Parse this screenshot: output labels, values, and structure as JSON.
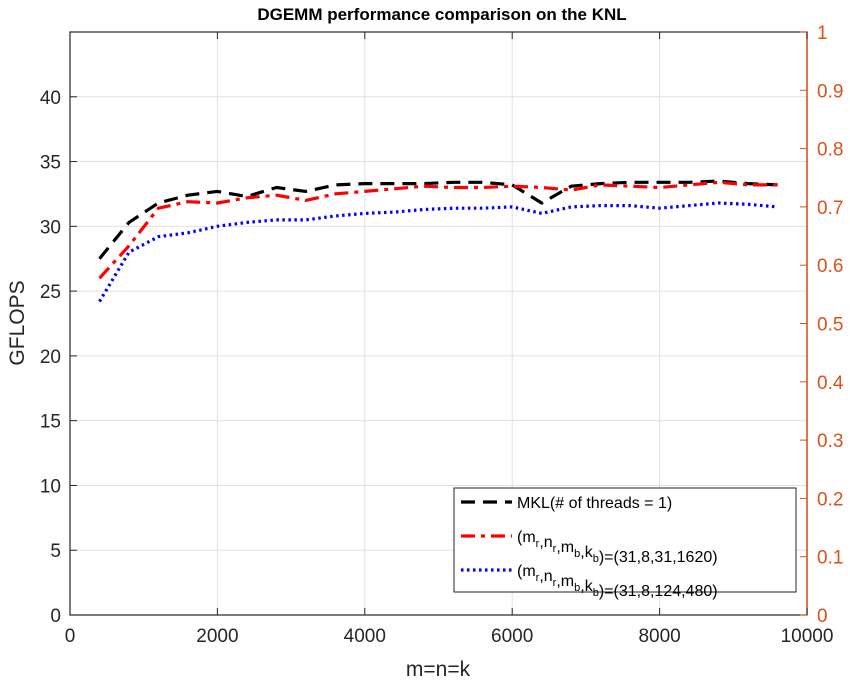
{
  "chart_data": {
    "type": "line",
    "title": "DGEMM performance comparison on the KNL",
    "xlabel": "m=n=k",
    "ylabel": "GFLOPS",
    "xlim": [
      0,
      10000
    ],
    "ylim": [
      0,
      45
    ],
    "y2lim": [
      0,
      1
    ],
    "x_ticks": [
      0,
      2000,
      4000,
      6000,
      8000,
      10000
    ],
    "y_ticks": [
      0,
      5,
      10,
      15,
      20,
      25,
      30,
      35,
      40
    ],
    "y2_ticks": [
      "0",
      "0.1",
      "0.2",
      "0.3",
      "0.4",
      "0.5",
      "0.6",
      "0.7",
      "0.8",
      "0.9",
      "1"
    ],
    "grid": true,
    "legend_position": "bottom-right",
    "x": [
      400,
      800,
      1200,
      1600,
      2000,
      2400,
      2800,
      3200,
      3600,
      4000,
      4400,
      4800,
      5200,
      5600,
      6000,
      6400,
      6800,
      7200,
      7600,
      8000,
      8400,
      8800,
      9200,
      9600
    ],
    "series": [
      {
        "name": "MKL(# of threads = 1)",
        "color": "#000000",
        "style": "dashed",
        "values": [
          27.5,
          30.3,
          31.8,
          32.4,
          32.7,
          32.3,
          33.0,
          32.7,
          33.2,
          33.3,
          33.3,
          33.3,
          33.4,
          33.4,
          33.2,
          31.8,
          33.1,
          33.3,
          33.4,
          33.4,
          33.4,
          33.5,
          33.3,
          33.2
        ]
      },
      {
        "name_parts": [
          [
            "(m",
            "r"
          ],
          [
            ",n",
            "r"
          ],
          [
            ",m",
            "b"
          ],
          [
            ",k",
            "b"
          ],
          [
            ")=(31,8,31,1620)",
            ""
          ]
        ],
        "color": "#ff0000",
        "style": "dashdot",
        "values": [
          26.0,
          28.5,
          31.4,
          31.9,
          31.8,
          32.2,
          32.4,
          32.0,
          32.5,
          32.7,
          32.9,
          33.1,
          33.0,
          33.0,
          33.1,
          33.0,
          32.8,
          33.2,
          33.1,
          33.0,
          33.2,
          33.4,
          33.2,
          33.2
        ]
      },
      {
        "name_parts": [
          [
            "(m",
            "r"
          ],
          [
            ",n",
            "r"
          ],
          [
            ",m",
            "b"
          ],
          [
            ",k",
            "b"
          ],
          [
            ")=(31,8,124,480)",
            ""
          ]
        ],
        "color": "#0000ff",
        "style": "dotted",
        "values": [
          24.2,
          28.0,
          29.2,
          29.5,
          30.0,
          30.3,
          30.5,
          30.5,
          30.8,
          31.0,
          31.1,
          31.3,
          31.4,
          31.4,
          31.5,
          31.0,
          31.5,
          31.6,
          31.6,
          31.4,
          31.6,
          31.8,
          31.7,
          31.5
        ]
      }
    ],
    "colors": {
      "right_axis": "#d95319",
      "grid": "#e0e0e0",
      "axis": "#262626"
    }
  }
}
